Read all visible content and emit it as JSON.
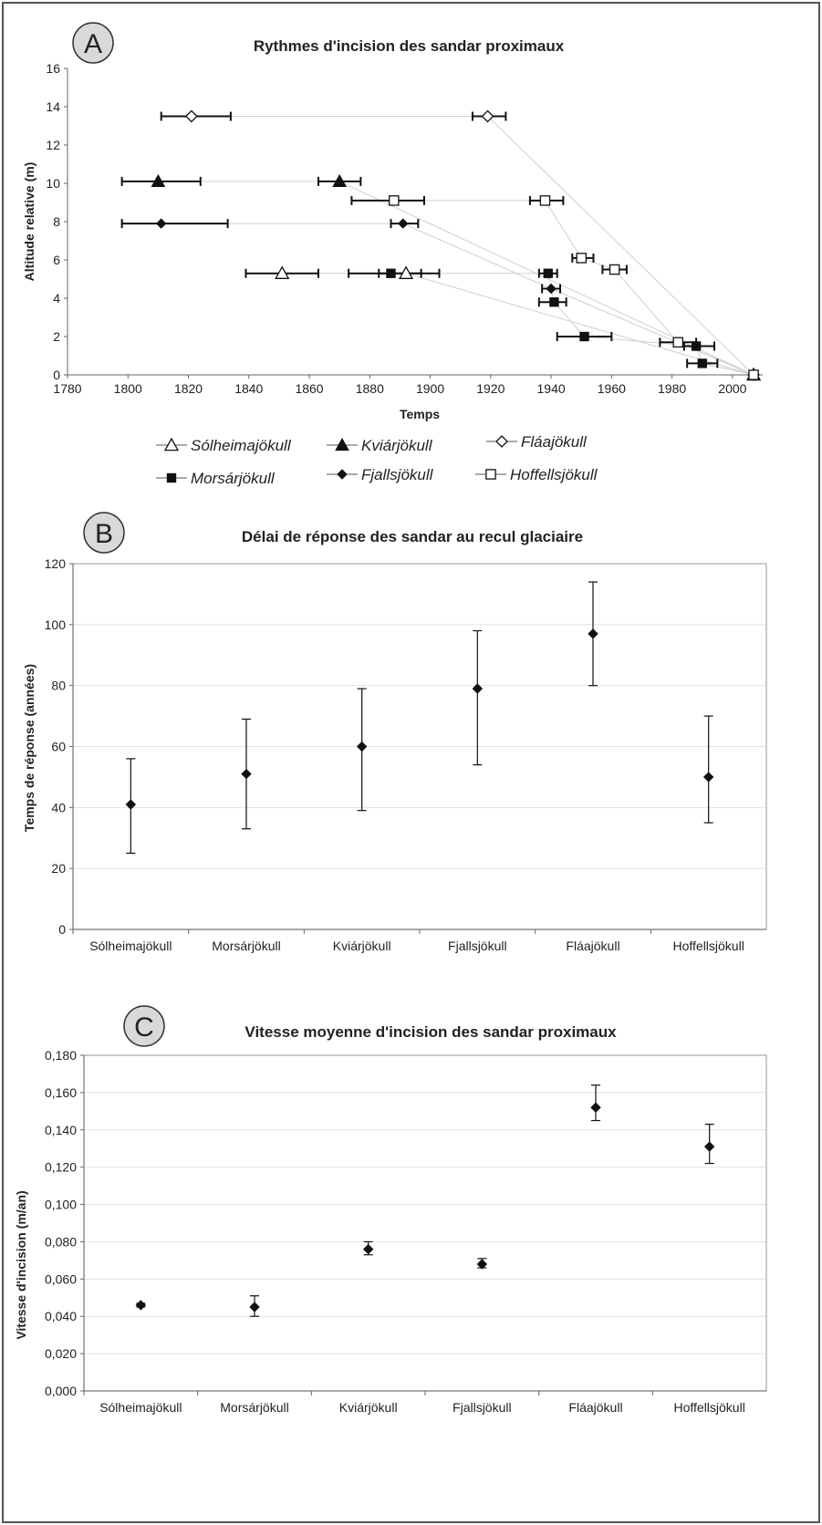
{
  "chart_data": [
    {
      "panel": "A",
      "type": "scatter",
      "title": "Rythmes d'incision des sandar proximaux",
      "xlabel": "Temps",
      "ylabel": "Altitude relative (m)",
      "xlim": [
        1780,
        2010
      ],
      "ylim": [
        0,
        16
      ],
      "x_ticks": [
        1780,
        1800,
        1820,
        1840,
        1860,
        1880,
        1900,
        1920,
        1940,
        1960,
        1980,
        2000
      ],
      "y_ticks": [
        0,
        2,
        4,
        6,
        8,
        10,
        12,
        14,
        16
      ],
      "legend_placement": "bottom",
      "series": [
        {
          "name": "Sólheimajökull",
          "marker": "triangle-open",
          "points": [
            {
              "x": 1851,
              "y": 5.3,
              "xerr": [
                1839,
                1863
              ]
            },
            {
              "x": 1892,
              "y": 5.3,
              "xerr": [
                1883,
                1903
              ]
            },
            {
              "x": 2007,
              "y": 0
            }
          ]
        },
        {
          "name": "Kviárjökull",
          "marker": "triangle-filled",
          "points": [
            {
              "x": 1810,
              "y": 10.1,
              "xerr": [
                1798,
                1824
              ]
            },
            {
              "x": 1870,
              "y": 10.1,
              "xerr": [
                1863,
                1877
              ]
            },
            {
              "x": 2007,
              "y": 0
            }
          ]
        },
        {
          "name": "Fláajökull",
          "marker": "diamond-open",
          "points": [
            {
              "x": 1821,
              "y": 13.5,
              "xerr": [
                1811,
                1834
              ]
            },
            {
              "x": 1919,
              "y": 13.5,
              "xerr": [
                1914,
                1925
              ]
            },
            {
              "x": 2007,
              "y": 0
            }
          ]
        },
        {
          "name": "Morsárjökull",
          "marker": "square-filled",
          "points": [
            {
              "x": 1887,
              "y": 5.3,
              "xerr": [
                1873,
                1897
              ]
            },
            {
              "x": 1939,
              "y": 5.3,
              "xerr": [
                1936,
                1942
              ]
            },
            {
              "x": 1941,
              "y": 3.8,
              "xerr": [
                1936,
                1945
              ]
            },
            {
              "x": 1951,
              "y": 2.0,
              "xerr": [
                1942,
                1960
              ]
            },
            {
              "x": 1988,
              "y": 1.5,
              "xerr": [
                1984,
                1994
              ]
            },
            {
              "x": 1990,
              "y": 0.6,
              "xerr": [
                1985,
                1995
              ]
            },
            {
              "x": 2007,
              "y": 0
            }
          ]
        },
        {
          "name": "Fjallsjökull",
          "marker": "diamond-filled",
          "points": [
            {
              "x": 1811,
              "y": 7.9,
              "xerr": [
                1798,
                1833
              ]
            },
            {
              "x": 1891,
              "y": 7.9,
              "xerr": [
                1887,
                1896
              ]
            },
            {
              "x": 1940,
              "y": 4.5,
              "xerr": [
                1937,
                1943
              ]
            },
            {
              "x": 2007,
              "y": 0
            }
          ]
        },
        {
          "name": "Hoffellsjökull",
          "marker": "square-open",
          "points": [
            {
              "x": 1888,
              "y": 9.1,
              "xerr": [
                1874,
                1898
              ]
            },
            {
              "x": 1938,
              "y": 9.1,
              "xerr": [
                1933,
                1944
              ]
            },
            {
              "x": 1950,
              "y": 6.1,
              "xerr": [
                1947,
                1954
              ]
            },
            {
              "x": 1961,
              "y": 5.5,
              "xerr": [
                1957,
                1965
              ]
            },
            {
              "x": 1982,
              "y": 1.7,
              "xerr": [
                1976,
                1988
              ]
            },
            {
              "x": 2007,
              "y": 0
            }
          ]
        }
      ]
    },
    {
      "panel": "B",
      "type": "scatter",
      "title": "Délai de réponse des sandar au recul glaciaire",
      "xlabel": "",
      "ylabel": "Temps de réponse (années)",
      "ylim": [
        0,
        120
      ],
      "y_ticks": [
        0,
        20,
        40,
        60,
        80,
        100,
        120
      ],
      "categories": [
        "Sólheimajökull",
        "Morsárjökull",
        "Kviárjökull",
        "Fjallsjökull",
        "Fláajökull",
        "Hoffellsjökull"
      ],
      "values": [
        41,
        51,
        60,
        79,
        97,
        50
      ],
      "err_low": [
        25,
        33,
        39,
        54,
        80,
        35
      ],
      "err_high": [
        56,
        69,
        79,
        98,
        114,
        70
      ]
    },
    {
      "panel": "C",
      "type": "scatter",
      "title": "Vitesse moyenne d'incision des sandar proximaux",
      "xlabel": "",
      "ylabel": "Vitesse d'incision (m/an)",
      "ylim": [
        0,
        0.18
      ],
      "y_ticks": [
        0,
        0.02,
        0.04,
        0.06,
        0.08,
        0.1,
        0.12,
        0.14,
        0.16,
        0.18
      ],
      "y_tick_labels": [
        "0,000",
        "0,020",
        "0,040",
        "0,060",
        "0,080",
        "0,100",
        "0,120",
        "0,140",
        "0,160",
        "0,180"
      ],
      "categories": [
        "Sólheimajökull",
        "Morsárjökull",
        "Kviárjökull",
        "Fjallsjökull",
        "Fláajökull",
        "Hoffellsjökull"
      ],
      "values": [
        0.046,
        0.045,
        0.076,
        0.068,
        0.152,
        0.131
      ],
      "err_low": [
        0.045,
        0.04,
        0.073,
        0.066,
        0.145,
        0.122
      ],
      "err_high": [
        0.047,
        0.051,
        0.08,
        0.071,
        0.164,
        0.143
      ]
    }
  ]
}
